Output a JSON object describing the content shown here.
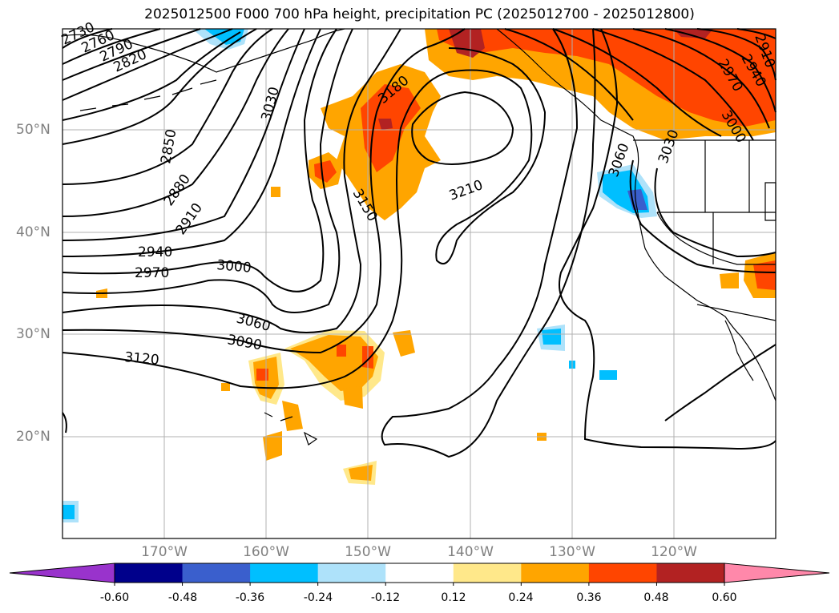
{
  "title": "2025012500 F000 700 hPa height, precipitation PC (2025012700 - 2025012800)",
  "lon_labels": [
    "170°W",
    "160°W",
    "150°W",
    "140°W",
    "130°W",
    "120°W"
  ],
  "lat_labels": [
    "50°N",
    "40°N",
    "30°N",
    "20°N"
  ],
  "contour_labels": [
    "2730",
    "2760",
    "2790",
    "2820",
    "2850",
    "2880",
    "2910",
    "2940",
    "2970",
    "3000",
    "3030",
    "3060",
    "3090",
    "3120",
    "3150",
    "3180",
    "3210",
    "2910",
    "2940",
    "2970",
    "3000",
    "3030",
    "3060"
  ],
  "colorbar": {
    "ticks": [
      "-0.60",
      "-0.48",
      "-0.36",
      "-0.24",
      "-0.12",
      "0.12",
      "0.24",
      "0.36",
      "0.48",
      "0.60"
    ],
    "colors": [
      "#9933cc",
      "#00008b",
      "#3a5fcd",
      "#00bfff",
      "#aee2fa",
      "#ffffff",
      "#ffe88a",
      "#ffa500",
      "#ff4500",
      "#b22222",
      "#ff88aa"
    ]
  },
  "fill_colors": {
    "light_yellow": "#ffe88a",
    "orange": "#ffa500",
    "orange_red": "#ff4500",
    "dark_red": "#b22222",
    "sky_blue": "#00bfff",
    "light_blue": "#aee2fa",
    "royal_blue": "#3a5fcd"
  }
}
